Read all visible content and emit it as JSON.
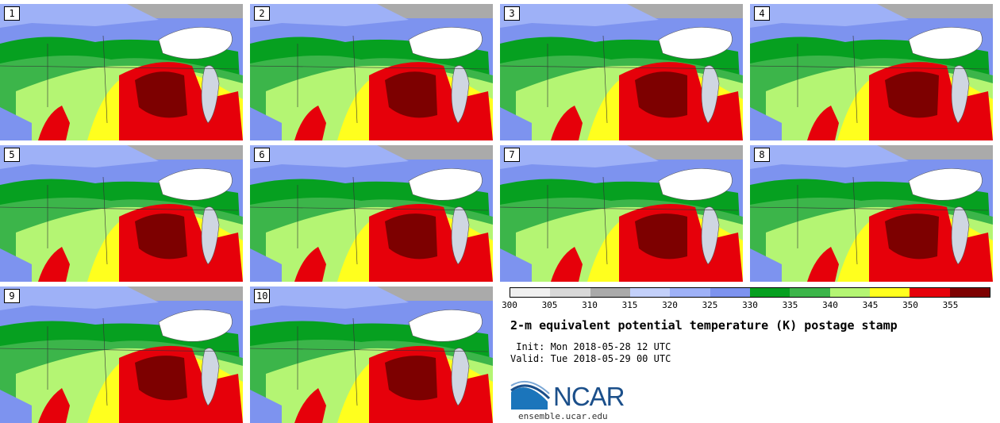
{
  "panels": [
    {
      "label": "1"
    },
    {
      "label": "2"
    },
    {
      "label": "3"
    },
    {
      "label": "4"
    },
    {
      "label": "5"
    },
    {
      "label": "6"
    },
    {
      "label": "7"
    },
    {
      "label": "8"
    },
    {
      "label": "9"
    },
    {
      "label": "10"
    }
  ],
  "colorbar": {
    "colors": [
      "#f0f0f0",
      "#d8d8d8",
      "#aaaaaa",
      "#c3d0fa",
      "#9eb1f7",
      "#7d93ef",
      "#06a020",
      "#3cb54a",
      "#b4f573",
      "#ffff1e",
      "#e6000a",
      "#7d0000"
    ],
    "ticks": [
      "300",
      "305",
      "310",
      "315",
      "320",
      "325",
      "330",
      "335",
      "340",
      "345",
      "350",
      "355"
    ]
  },
  "title": "2-m equivalent potential temperature (K) postage stamp",
  "init": " Init: Mon 2018-05-28 12 UTC",
  "valid": "Valid: Tue 2018-05-29 00 UTC",
  "logo": {
    "name": "NCAR",
    "url": "ensemble.ucar.edu"
  }
}
